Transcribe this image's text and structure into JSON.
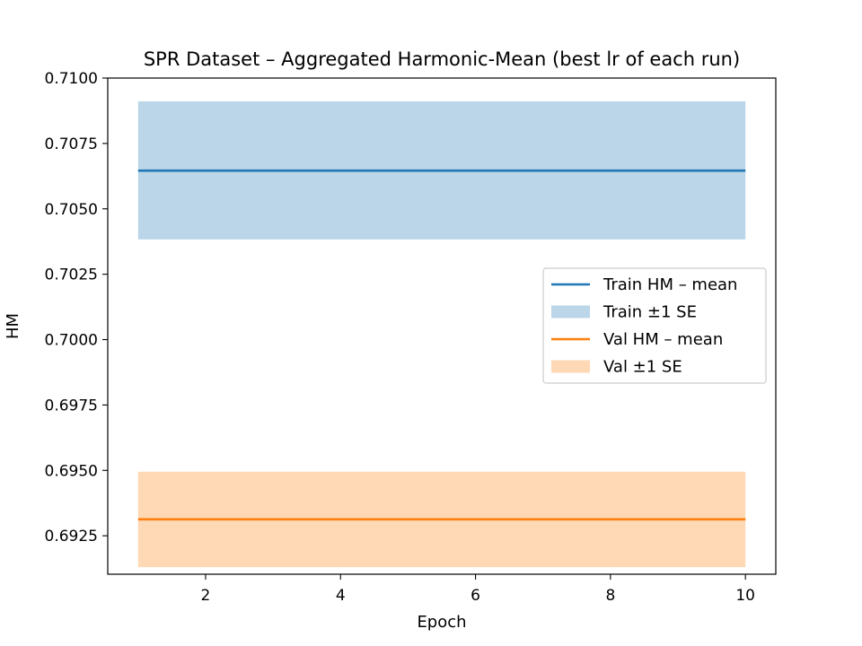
{
  "chart_data": {
    "type": "line",
    "title": "SPR Dataset – Aggregated Harmonic-Mean (best lr of each run)",
    "xlabel": "Epoch",
    "ylabel": "HM",
    "xlim": [
      0.55,
      10.45
    ],
    "ylim": [
      0.69103,
      0.71
    ],
    "x": [
      1,
      2,
      3,
      4,
      5,
      6,
      7,
      8,
      9,
      10
    ],
    "xticks": [
      2,
      4,
      6,
      8,
      10
    ],
    "yticks": [
      0.6925,
      0.695,
      0.6975,
      0.7,
      0.7025,
      0.705,
      0.7075,
      0.71
    ],
    "grid": false,
    "legend_position": "center-right",
    "series": [
      {
        "name": "Train HM – mean",
        "band_name": "Train ±1 SE",
        "color": "#1f77b4",
        "mean": [
          0.70646,
          0.70646,
          0.70646,
          0.70646,
          0.70646,
          0.70646,
          0.70646,
          0.70646,
          0.70646,
          0.70646
        ],
        "lower": [
          0.70383,
          0.70383,
          0.70383,
          0.70383,
          0.70383,
          0.70383,
          0.70383,
          0.70383,
          0.70383,
          0.70383
        ],
        "upper": [
          0.70911,
          0.70911,
          0.70911,
          0.70911,
          0.70911,
          0.70911,
          0.70911,
          0.70911,
          0.70911,
          0.70911
        ]
      },
      {
        "name": "Val HM – mean",
        "band_name": "Val ±1 SE",
        "color": "#ff7f0e",
        "mean": [
          0.69313,
          0.69313,
          0.69313,
          0.69313,
          0.69313,
          0.69313,
          0.69313,
          0.69313,
          0.69313,
          0.69313
        ],
        "lower": [
          0.6913,
          0.6913,
          0.6913,
          0.6913,
          0.6913,
          0.6913,
          0.6913,
          0.6913,
          0.6913,
          0.6913
        ],
        "upper": [
          0.69495,
          0.69495,
          0.69495,
          0.69495,
          0.69495,
          0.69495,
          0.69495,
          0.69495,
          0.69495,
          0.69495
        ]
      }
    ]
  }
}
